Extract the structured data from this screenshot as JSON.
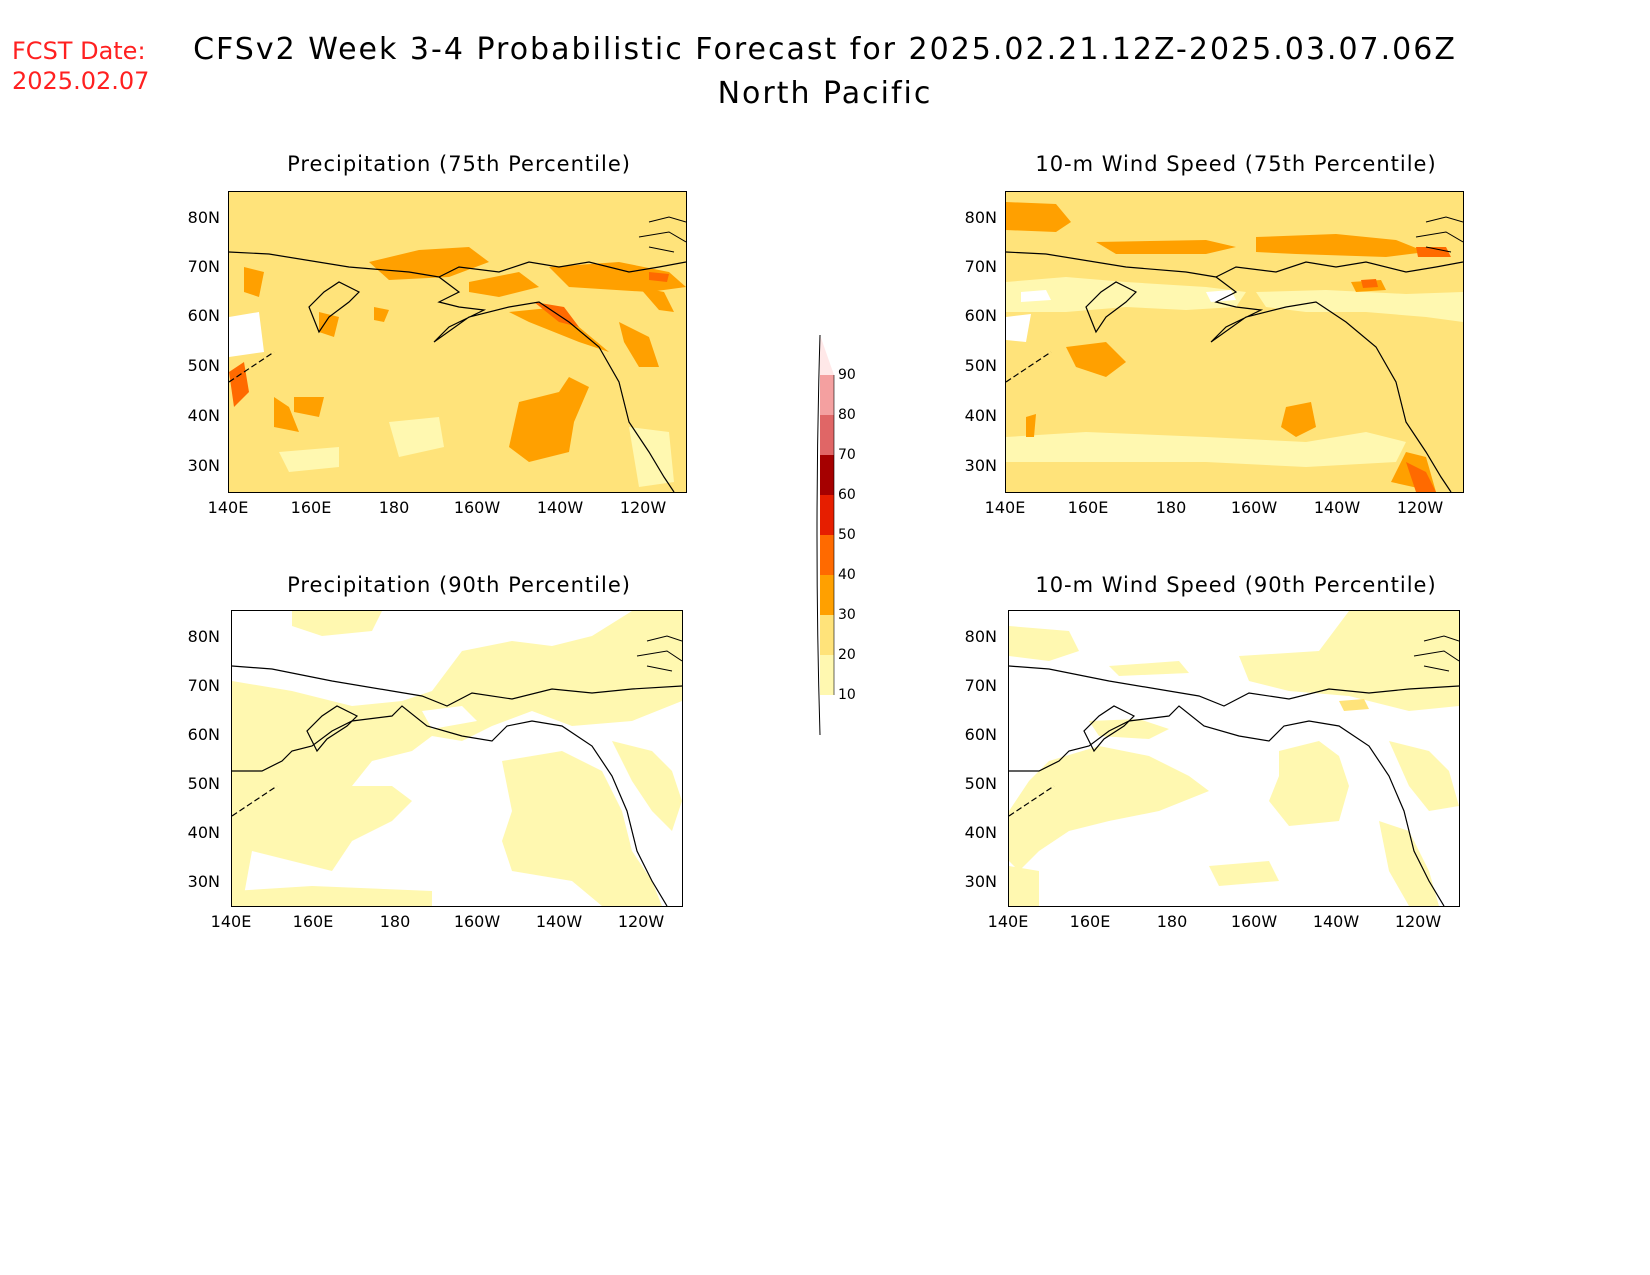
{
  "header": {
    "fcst_label": "FCST Date:",
    "fcst_date": "2025.02.07",
    "title_line1": "CFSv2 Week 3-4 Probabilistic Forecast for 2025.02.21.12Z-2025.03.07.06Z",
    "title_line2": "North Pacific"
  },
  "axes": {
    "lat_labels": [
      "80N",
      "70N",
      "60N",
      "50N",
      "40N",
      "30N"
    ],
    "lon_labels": [
      "140E",
      "160E",
      "180",
      "160W",
      "140W",
      "120W"
    ]
  },
  "panels": [
    {
      "title": "Precipitation (75th Percentile)",
      "variable": "precipitation",
      "percentile": 75,
      "dominant_range": "20-30"
    },
    {
      "title": "10-m Wind Speed (75th Percentile)",
      "variable": "wind_speed",
      "percentile": 75,
      "dominant_range": "20-30"
    },
    {
      "title": "Precipitation (90th Percentile)",
      "variable": "precipitation",
      "percentile": 90,
      "dominant_range": "0-20"
    },
    {
      "title": "10-m Wind Speed (90th Percentile)",
      "variable": "wind_speed",
      "percentile": 90,
      "dominant_range": "0-20"
    }
  ],
  "colorbar": {
    "labels": [
      "90",
      "80",
      "70",
      "60",
      "50",
      "40",
      "30",
      "20",
      "10"
    ],
    "colors": {
      "lt10": "#ffffff",
      "c10_20": "#fff8b0",
      "c20_30": "#ffe37a",
      "c30_40": "#ffa000",
      "c40_50": "#ff6a00",
      "c50_60": "#e61e00",
      "c60_70": "#a50000",
      "c70_80": "#e06666",
      "c80_90": "#f4a0a0",
      "gt90": "#ffe8e8"
    }
  }
}
